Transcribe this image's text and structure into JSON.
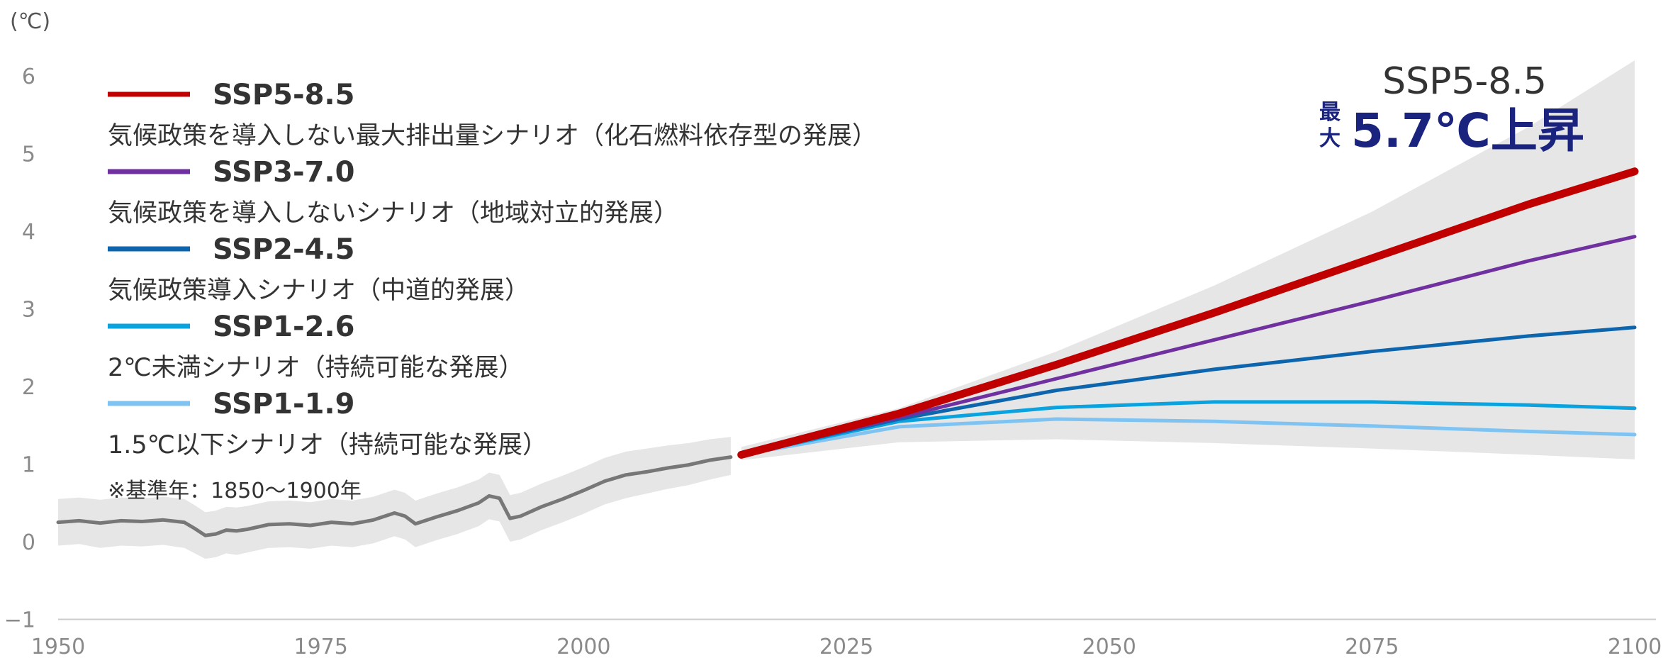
{
  "chart_data": {
    "type": "line",
    "unit_label": "(℃)",
    "note": "※基準年：1850〜1900年",
    "xlim": [
      1950,
      2100
    ],
    "ylim": [
      -1,
      6.5
    ],
    "x_ticks": [
      1950,
      1975,
      2000,
      2025,
      2050,
      2075,
      2100
    ],
    "y_ticks": [
      -1,
      0,
      1,
      2,
      3,
      4,
      5,
      6
    ],
    "y_tick_labels": [
      "−1",
      "0",
      "1",
      "2",
      "3",
      "4",
      "5",
      "6"
    ],
    "grid": false,
    "legend_position": "top-left",
    "historical": {
      "color": "#777777",
      "x": [
        1950,
        1952,
        1954,
        1956,
        1958,
        1960,
        1962,
        1963,
        1964,
        1965,
        1966,
        1967,
        1968,
        1970,
        1972,
        1974,
        1976,
        1978,
        1980,
        1982,
        1983,
        1984,
        1986,
        1988,
        1990,
        1991,
        1992,
        1993,
        1994,
        1996,
        1998,
        2000,
        2002,
        2004,
        2006,
        2008,
        2010,
        2012,
        2014
      ],
      "y": [
        0.25,
        0.27,
        0.24,
        0.27,
        0.26,
        0.28,
        0.25,
        0.17,
        0.08,
        0.1,
        0.15,
        0.14,
        0.16,
        0.22,
        0.23,
        0.21,
        0.25,
        0.23,
        0.28,
        0.37,
        0.33,
        0.23,
        0.32,
        0.4,
        0.5,
        0.59,
        0.56,
        0.3,
        0.33,
        0.45,
        0.55,
        0.66,
        0.78,
        0.86,
        0.9,
        0.95,
        0.99,
        1.05,
        1.09
      ],
      "band_lower": [
        -0.05,
        -0.03,
        -0.08,
        -0.05,
        -0.06,
        -0.04,
        -0.08,
        -0.15,
        -0.22,
        -0.2,
        -0.15,
        -0.17,
        -0.14,
        -0.08,
        -0.07,
        -0.09,
        -0.05,
        -0.07,
        -0.02,
        0.07,
        0.03,
        -0.07,
        0.02,
        0.1,
        0.2,
        0.29,
        0.26,
        0.0,
        0.03,
        0.15,
        0.25,
        0.36,
        0.48,
        0.56,
        0.62,
        0.68,
        0.73,
        0.8,
        0.86
      ],
      "band_upper": [
        0.55,
        0.57,
        0.54,
        0.57,
        0.56,
        0.58,
        0.55,
        0.47,
        0.38,
        0.4,
        0.45,
        0.44,
        0.46,
        0.52,
        0.53,
        0.51,
        0.55,
        0.53,
        0.58,
        0.67,
        0.63,
        0.53,
        0.62,
        0.7,
        0.8,
        0.89,
        0.86,
        0.6,
        0.63,
        0.75,
        0.85,
        0.96,
        1.08,
        1.16,
        1.2,
        1.24,
        1.27,
        1.32,
        1.35
      ]
    },
    "projection_band": {
      "x": [
        2015,
        2030,
        2045,
        2060,
        2075,
        2090,
        2100
      ],
      "lower": [
        1.05,
        1.28,
        1.32,
        1.27,
        1.2,
        1.12,
        1.06
      ],
      "upper": [
        1.22,
        1.72,
        2.45,
        3.3,
        4.25,
        5.35,
        6.2
      ]
    },
    "series": [
      {
        "name": "SSP1-1.9",
        "description": "1.5℃以下シナリオ（持続可能な発展）",
        "color": "#7fc3f3",
        "stroke": 5,
        "x": [
          2015,
          2030,
          2045,
          2060,
          2075,
          2090,
          2100
        ],
        "y": [
          1.12,
          1.48,
          1.58,
          1.55,
          1.49,
          1.42,
          1.38
        ]
      },
      {
        "name": "SSP1-2.6",
        "description": "2℃未満シナリオ（持続可能な発展）",
        "color": "#0aa3e0",
        "stroke": 5,
        "x": [
          2015,
          2030,
          2045,
          2060,
          2075,
          2090,
          2100
        ],
        "y": [
          1.12,
          1.55,
          1.73,
          1.8,
          1.8,
          1.76,
          1.72
        ]
      },
      {
        "name": "SSP2-4.5",
        "description": "気候政策導入シナリオ（中道的発展）",
        "color": "#0d65ad",
        "stroke": 5,
        "x": [
          2015,
          2030,
          2045,
          2060,
          2075,
          2090,
          2100
        ],
        "y": [
          1.12,
          1.58,
          1.95,
          2.22,
          2.45,
          2.65,
          2.76
        ]
      },
      {
        "name": "SSP3-7.0",
        "description": "気候政策を導入しないシナリオ（地域対立的発展）",
        "color": "#7030a0",
        "stroke": 5,
        "x": [
          2015,
          2030,
          2045,
          2060,
          2075,
          2090,
          2100
        ],
        "y": [
          1.12,
          1.6,
          2.1,
          2.6,
          3.1,
          3.62,
          3.93
        ]
      },
      {
        "name": "SSP5-8.5",
        "description": "気候政策を導入しない最大排出量シナリオ（化石燃料依存型の発展）",
        "color": "#c00000",
        "stroke": 11,
        "x": [
          2015,
          2030,
          2045,
          2060,
          2075,
          2090,
          2100
        ],
        "y": [
          1.12,
          1.65,
          2.28,
          2.95,
          3.65,
          4.35,
          4.77
        ]
      }
    ],
    "legend_order": [
      "SSP5-8.5",
      "SSP3-7.0",
      "SSP2-4.5",
      "SSP1-2.6",
      "SSP1-1.9"
    ],
    "annotation": {
      "title": "SSP5-8.5",
      "prefix_top": "最",
      "prefix_bottom": "大",
      "value": "5.7℃上昇"
    }
  }
}
